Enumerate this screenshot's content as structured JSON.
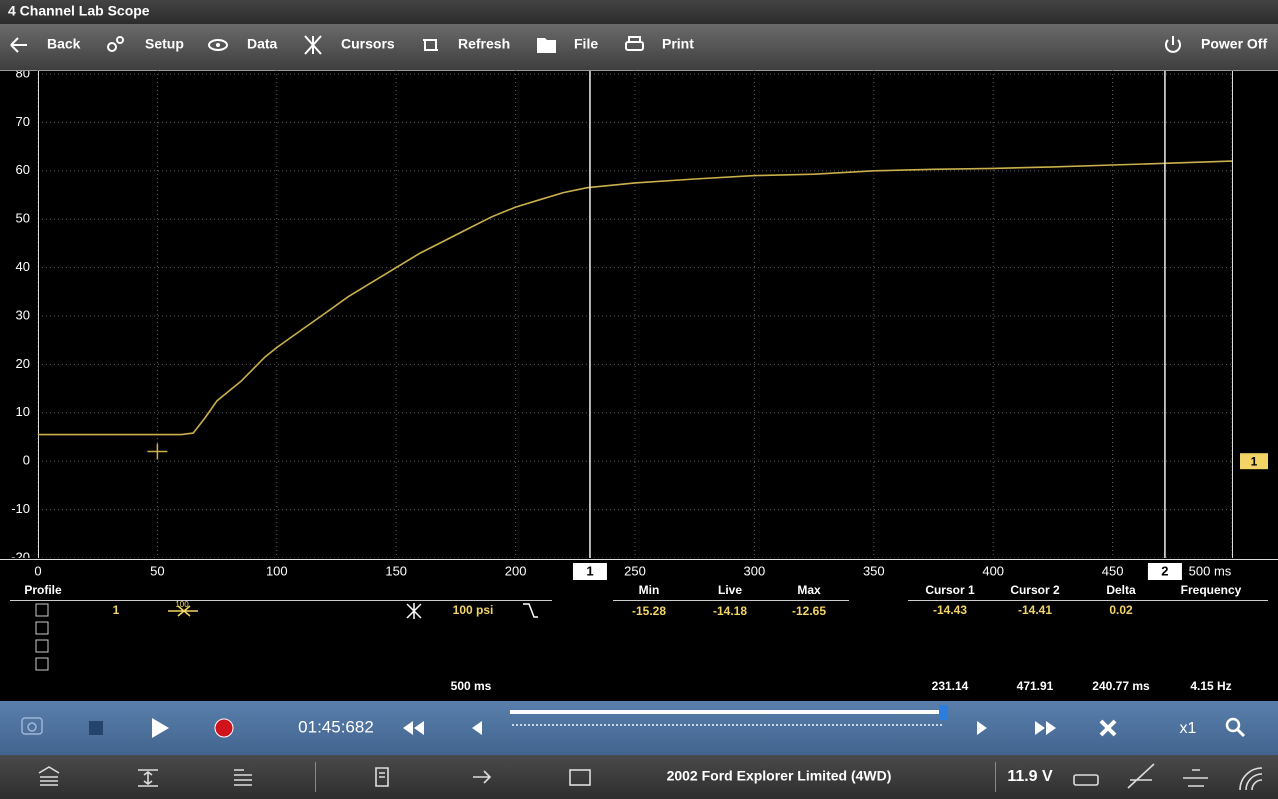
{
  "app_title": "4 Channel Lab Scope",
  "toolbar": [
    "Back",
    "Setup",
    "Data",
    "Cursors",
    "Refresh",
    "File",
    "Print",
    "Power Off"
  ],
  "chart_data": {
    "type": "line",
    "x": [
      0,
      10,
      20,
      30,
      40,
      50,
      60,
      65,
      70,
      75,
      80,
      85,
      90,
      95,
      100,
      110,
      120,
      130,
      140,
      150,
      160,
      170,
      180,
      190,
      200,
      210,
      220,
      230,
      240,
      250,
      275,
      300,
      325,
      350,
      375,
      400,
      425,
      450,
      475,
      500
    ],
    "series": [
      {
        "name": "1",
        "color": "#c9b04c",
        "values": [
          5.5,
          5.5,
          5.5,
          5.5,
          5.5,
          5.5,
          5.5,
          5.8,
          9,
          12.5,
          14.5,
          16.5,
          19,
          21.5,
          23.5,
          27,
          30.5,
          34,
          37,
          40,
          43,
          45.5,
          48,
          50.5,
          52.5,
          54,
          55.5,
          56.5,
          57,
          57.5,
          58.3,
          59,
          59.3,
          60,
          60.3,
          60.5,
          60.8,
          61.2,
          61.6,
          62
        ]
      }
    ],
    "xlim": [
      0,
      500
    ],
    "ylim": [
      -20,
      80
    ],
    "xticks": [
      0,
      50,
      100,
      150,
      200,
      250,
      300,
      350,
      400,
      450,
      {
        "value": 500,
        "label": "500 ms"
      }
    ],
    "yticks": [
      -20,
      -10,
      0,
      10,
      20,
      30,
      40,
      50,
      60,
      70,
      80
    ],
    "grid": true,
    "cursors": [
      {
        "label": "1",
        "value": 231.14
      },
      {
        "label": "2",
        "value": 471.91
      }
    ]
  },
  "profile": {
    "header": "Profile",
    "channel": "1",
    "scale_badge": "100",
    "range": "100 psi",
    "timebase": "500 ms"
  },
  "measurements": {
    "headers": [
      "Min",
      "Live",
      "Max"
    ],
    "values": [
      "-15.28",
      "-14.18",
      "-12.65"
    ]
  },
  "cursor_readout": {
    "headers": [
      "Cursor 1",
      "Cursor 2",
      "Delta",
      "Frequency"
    ],
    "values": [
      "-14.43",
      "-14.41",
      "0.02"
    ],
    "delta_time": "240.77 ms",
    "frequency": "4.15 Hz"
  },
  "playback": {
    "time": "01:45:682",
    "zoom": "x1"
  },
  "status_bar": {
    "vehicle": "2002 Ford Explorer Limited (4WD)",
    "voltage": "11.9 V"
  }
}
